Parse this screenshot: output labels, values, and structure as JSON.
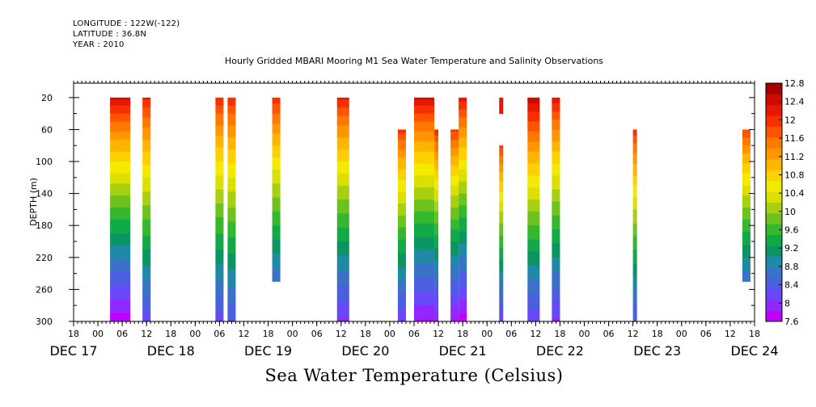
{
  "header": {
    "longitude": "LONGITUDE : 122W(-122)",
    "latitude": "LATITUDE : 36.8N",
    "year": "YEAR : 2010"
  },
  "chart_data": {
    "type": "heatmap",
    "title": "Hourly Gridded MBARI Mooring M1 Sea Water Temperature and Salinity Observations",
    "variable_title": "Sea Water Temperature (Celsius)",
    "ylabel": "DEPTH (m)",
    "y_reversed": true,
    "ylim": [
      300,
      2
    ],
    "y_ticks": [
      20,
      60,
      100,
      140,
      180,
      220,
      260,
      300
    ],
    "x_start": "DEC 17 12:00",
    "x_end": "DEC 24 12:00",
    "x_hour_ticks": [
      "18",
      "00",
      "06",
      "12",
      "18",
      "00",
      "06",
      "12",
      "18",
      "00",
      "06",
      "12",
      "18",
      "00",
      "06",
      "12",
      "18",
      "00",
      "06",
      "12",
      "18",
      "00",
      "06",
      "12",
      "18",
      "00",
      "06",
      "12",
      "18",
      "00",
      "06",
      "12"
    ],
    "x_day_labels": [
      "DEC 17",
      "DEC 18",
      "DEC 19",
      "DEC 20",
      "DEC 21",
      "DEC 22",
      "DEC 23",
      "DEC 24"
    ],
    "colorbar": {
      "levels": [
        7.6,
        8,
        8.4,
        8.8,
        9.2,
        9.6,
        10,
        10.4,
        10.8,
        11.2,
        11.6,
        12,
        12.4,
        12.8
      ],
      "colors": [
        "#c000ff",
        "#9028ff",
        "#6848f8",
        "#4c5fe0",
        "#3a72c8",
        "#1f89a6",
        "#0b9562",
        "#12aa48",
        "#35b72e",
        "#6ec21e",
        "#a7d010",
        "#dce000",
        "#f4ea00",
        "#ffd000",
        "#ffb400",
        "#ff9600",
        "#ff7800",
        "#ff5400",
        "#f83000",
        "#e81800",
        "#cc0a00",
        "#a80000"
      ]
    },
    "columns": [
      {
        "start": "DEC 17 21:00",
        "end": "DEC 18 02:00",
        "top_depth": 20,
        "bottom_depth": 300,
        "surface_temp": 12.4,
        "bottom_temp": 7.7
      },
      {
        "start": "DEC 18 05:00",
        "end": "DEC 18 07:00",
        "top_depth": 20,
        "bottom_depth": 300,
        "surface_temp": 12.2,
        "bottom_temp": 8.2
      },
      {
        "start": "DEC 18 23:00",
        "end": "DEC 19 01:00",
        "top_depth": 20,
        "bottom_depth": 300,
        "surface_temp": 12.1,
        "bottom_temp": 8.2
      },
      {
        "start": "DEC 19 02:00",
        "end": "DEC 19 04:00",
        "top_depth": 20,
        "bottom_depth": 300,
        "surface_temp": 12.1,
        "bottom_temp": 8.3
      },
      {
        "start": "DEC 19 13:00",
        "end": "DEC 19 15:00",
        "top_depth": 20,
        "bottom_depth": 250,
        "surface_temp": 12.1,
        "bottom_temp": 8.6
      },
      {
        "start": "DEC 20 05:00",
        "end": "DEC 20 08:00",
        "top_depth": 20,
        "bottom_depth": 300,
        "surface_temp": 12.2,
        "bottom_temp": 8.0
      },
      {
        "start": "DEC 20 20:00",
        "end": "DEC 20 22:00",
        "top_depth": 60,
        "bottom_depth": 300,
        "surface_temp": 12.0,
        "bottom_temp": 8.1
      },
      {
        "start": "DEC 21 00:00",
        "end": "DEC 21 05:00",
        "top_depth": 20,
        "bottom_depth": 300,
        "surface_temp": 12.4,
        "bottom_temp": 7.8
      },
      {
        "start": "DEC 21 05:00",
        "end": "DEC 21 06:00",
        "top_depth": 60,
        "bottom_depth": 300,
        "surface_temp": 12.1,
        "bottom_temp": 7.9
      },
      {
        "start": "DEC 21 09:00",
        "end": "DEC 21 11:00",
        "top_depth": 60,
        "bottom_depth": 300,
        "surface_temp": 12.0,
        "bottom_temp": 7.8
      },
      {
        "start": "DEC 21 11:00",
        "end": "DEC 21 13:00",
        "top_depth": 20,
        "bottom_depth": 300,
        "surface_temp": 12.3,
        "bottom_temp": 7.7
      },
      {
        "start": "DEC 21 21:00",
        "end": "DEC 21 22:00",
        "top_depth": 20,
        "bottom_depth": 40,
        "surface_temp": 12.3,
        "bottom_temp": 12.1
      },
      {
        "start": "DEC 21 21:00",
        "end": "DEC 21 22:00",
        "top_depth": 80,
        "bottom_depth": 300,
        "surface_temp": 12.0,
        "bottom_temp": 8.1
      },
      {
        "start": "DEC 22 04:00",
        "end": "DEC 22 07:00",
        "top_depth": 20,
        "bottom_depth": 300,
        "surface_temp": 12.6,
        "bottom_temp": 8.1
      },
      {
        "start": "DEC 22 10:00",
        "end": "DEC 22 12:00",
        "top_depth": 20,
        "bottom_depth": 300,
        "surface_temp": 12.3,
        "bottom_temp": 8.0
      },
      {
        "start": "DEC 23 06:00",
        "end": "DEC 23 07:00",
        "top_depth": 60,
        "bottom_depth": 300,
        "surface_temp": 12.1,
        "bottom_temp": 8.3
      },
      {
        "start": "DEC 24 09:00",
        "end": "DEC 24 11:00",
        "top_depth": 60,
        "bottom_depth": 250,
        "surface_temp": 11.9,
        "bottom_temp": 8.6
      }
    ]
  }
}
